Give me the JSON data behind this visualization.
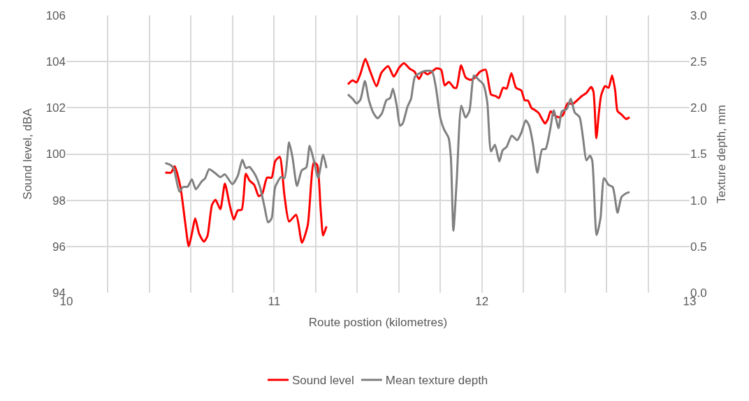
{
  "chart_data": {
    "type": "line",
    "xlabel": "Route postion (kilometres)",
    "ylabel": "Sound level, dBA",
    "y2label": "Texture depth, mm",
    "xlim": [
      10,
      13
    ],
    "xticks": [
      10,
      {
        "value": 10.2,
        "label": null
      },
      {
        "value": 10.4,
        "label": null
      },
      {
        "value": 10.6,
        "label": null
      },
      {
        "value": 10.8,
        "label": null
      },
      11,
      {
        "value": 11.2,
        "label": null
      },
      {
        "value": 11.4,
        "label": null
      },
      {
        "value": 11.6,
        "label": null
      },
      {
        "value": 11.8,
        "label": null
      },
      12,
      {
        "value": 12.2,
        "label": null
      },
      {
        "value": 12.4,
        "label": null
      },
      {
        "value": 12.6,
        "label": null
      },
      {
        "value": 12.8,
        "label": null
      },
      13
    ],
    "ylim": [
      94,
      106
    ],
    "yticks": [
      94,
      96,
      98,
      100,
      102,
      104,
      106
    ],
    "y2lim": [
      0,
      3
    ],
    "y2ticks": [
      {
        "value": 0,
        "label": "0.0"
      },
      {
        "value": 0.5,
        "label": "0.5"
      },
      {
        "value": 1,
        "label": "1.0"
      },
      {
        "value": 1.5,
        "label": "1.5"
      },
      {
        "value": 2,
        "label": "2.0"
      },
      {
        "value": 2.5,
        "label": "2.5"
      },
      {
        "value": 3,
        "label": "3.0"
      }
    ],
    "grid": true,
    "legend": "bottom",
    "marker": "none",
    "line_style": "solid",
    "series": [
      {
        "name": "Sound level",
        "color": "#ff0000",
        "x": [
          10.476,
          10.504,
          10.521,
          10.549,
          10.572,
          10.589,
          10.606,
          10.62,
          10.639,
          10.662,
          10.679,
          10.701,
          10.718,
          10.741,
          10.763,
          10.786,
          10.806,
          10.825,
          10.844,
          10.864,
          10.881,
          10.904,
          10.926,
          10.943,
          10.966,
          10.988,
          11.005,
          11.027,
          11.05,
          11.072,
          11.106,
          11.134,
          11.162,
          11.191,
          11.207,
          11.224,
          11.236,
          11.252,
          11.3,
          11.355,
          11.378,
          11.397,
          11.417,
          11.439,
          11.462,
          11.493,
          11.516,
          11.549,
          11.576,
          11.602,
          11.625,
          11.653,
          11.675,
          11.698,
          11.718,
          11.737,
          11.76,
          11.782,
          11.804,
          11.821,
          11.841,
          11.866,
          11.878,
          11.9,
          11.922,
          11.945,
          11.967,
          11.99,
          12.018,
          12.044,
          12.066,
          12.082,
          12.102,
          12.119,
          12.142,
          12.164,
          12.19,
          12.206,
          12.222,
          12.239,
          12.256,
          12.273,
          12.29,
          12.304,
          12.318,
          12.331,
          12.352,
          12.374,
          12.391,
          12.413,
          12.436,
          12.458,
          12.481,
          12.503,
          12.526,
          12.537,
          12.551,
          12.563,
          12.574,
          12.593,
          12.61,
          12.627,
          12.642,
          12.653,
          12.672,
          12.694,
          12.711
        ],
        "values": [
          99.2,
          99.2,
          99.47,
          98.57,
          97.03,
          96.01,
          96.64,
          97.22,
          96.55,
          96.21,
          96.45,
          97.8,
          98.02,
          97.61,
          98.72,
          97.8,
          97.17,
          97.56,
          97.59,
          99.15,
          98.86,
          98.67,
          98.18,
          98.28,
          98.98,
          98.98,
          99.69,
          99.88,
          98.19,
          97.08,
          97.37,
          96.16,
          96.93,
          99.63,
          99.53,
          97.6,
          96.48,
          96.87,
          null,
          103.02,
          103.19,
          103.1,
          103.51,
          104.12,
          103.59,
          102.93,
          103.51,
          103.8,
          103.35,
          103.74,
          103.93,
          103.69,
          103.57,
          103.25,
          103.57,
          103.45,
          103.57,
          103.71,
          103.65,
          102.97,
          103.12,
          102.87,
          102.87,
          103.84,
          103.31,
          103.21,
          103.31,
          103.55,
          103.65,
          102.58,
          102.51,
          102.42,
          102.87,
          102.83,
          103.5,
          102.87,
          102.75,
          102.33,
          102.31,
          101.99,
          101.9,
          101.78,
          101.51,
          101.32,
          101.51,
          101.85,
          101.66,
          101.59,
          101.7,
          102.2,
          102.16,
          102.32,
          102.51,
          102.64,
          102.9,
          102.71,
          100.68,
          101.76,
          102.53,
          102.94,
          102.87,
          103.4,
          102.73,
          101.86,
          101.71,
          101.52,
          101.59
        ]
      },
      {
        "name": "Mean texture depth",
        "color": "#808080",
        "axis": "y2",
        "x": [
          10.476,
          10.499,
          10.516,
          10.544,
          10.561,
          10.584,
          10.604,
          10.623,
          10.651,
          10.668,
          10.687,
          10.713,
          10.741,
          10.763,
          10.799,
          10.825,
          10.847,
          10.864,
          10.881,
          10.909,
          10.932,
          10.954,
          10.971,
          10.988,
          11.005,
          11.033,
          11.05,
          11.072,
          11.089,
          11.11,
          11.133,
          11.155,
          11.171,
          11.191,
          11.212,
          11.236,
          11.252,
          11.3,
          11.355,
          11.378,
          11.397,
          11.415,
          11.437,
          11.456,
          11.479,
          11.498,
          11.519,
          11.541,
          11.558,
          11.572,
          11.591,
          11.606,
          11.619,
          11.642,
          11.659,
          11.678,
          11.704,
          11.726,
          11.76,
          11.778,
          11.8,
          11.817,
          11.84,
          11.851,
          11.863,
          11.879,
          11.901,
          11.921,
          11.94,
          11.962,
          11.985,
          12.007,
          12.026,
          12.044,
          12.063,
          12.084,
          12.1,
          12.119,
          12.144,
          12.17,
          12.19,
          12.211,
          12.228,
          12.245,
          12.267,
          12.29,
          12.307,
          12.329,
          12.346,
          12.369,
          12.385,
          12.408,
          12.428,
          12.447,
          12.47,
          12.487,
          12.503,
          12.52,
          12.531,
          12.552,
          12.571,
          12.588,
          12.61,
          12.63,
          12.653,
          12.672,
          12.694,
          12.711
        ],
        "values": [
          1.403,
          1.384,
          1.348,
          1.094,
          1.143,
          1.147,
          1.227,
          1.118,
          1.203,
          1.239,
          1.336,
          1.3,
          1.251,
          1.28,
          1.174,
          1.263,
          1.437,
          1.348,
          1.36,
          1.275,
          1.143,
          0.926,
          0.761,
          0.804,
          1.143,
          1.251,
          1.239,
          1.626,
          1.457,
          1.155,
          1.324,
          1.355,
          1.589,
          1.432,
          1.244,
          1.493,
          1.348,
          null,
          2.145,
          2.097,
          2.048,
          2.085,
          2.29,
          2.085,
          1.94,
          1.887,
          1.94,
          2.085,
          2.104,
          2.206,
          2.012,
          1.807,
          1.831,
          2.012,
          2.097,
          2.338,
          2.379,
          2.399,
          2.394,
          2.23,
          1.891,
          1.771,
          1.674,
          1.457,
          0.671,
          1.215,
          2.024,
          1.896,
          1.964,
          2.35,
          2.302,
          2.254,
          2.06,
          1.529,
          1.601,
          1.42,
          1.541,
          1.577,
          1.698,
          1.65,
          1.732,
          1.865,
          1.805,
          1.623,
          1.297,
          1.551,
          1.556,
          1.768,
          1.973,
          1.78,
          1.961,
          1.985,
          2.099,
          1.949,
          1.901,
          1.674,
          1.432,
          1.481,
          1.432,
          0.623,
          0.804,
          1.239,
          1.167,
          1.143,
          0.865,
          1.034,
          1.075,
          1.089
        ]
      }
    ]
  }
}
